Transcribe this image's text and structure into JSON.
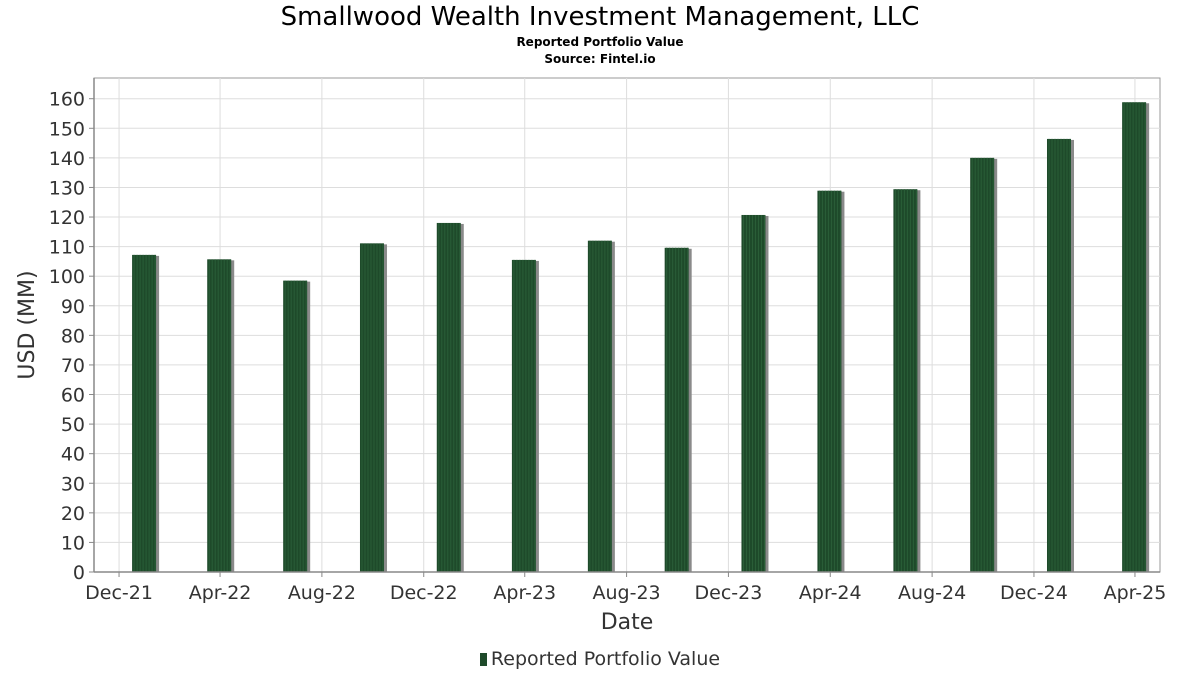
{
  "header": {
    "title": "Smallwood Wealth Investment Management, LLC",
    "subtitle": "Reported Portfolio Value",
    "source": "Source: Fintel.io"
  },
  "legend": {
    "label": "Reported Portfolio Value",
    "position": "bottom-center"
  },
  "colors": {
    "bar": "#1e4a2a",
    "bar_stripe": "#2a5e38",
    "bar_shadow": "#8a8a8a",
    "grid": "#dddddd",
    "axis": "#888888"
  },
  "chart_data": {
    "type": "bar",
    "title": "Smallwood Wealth Investment Management, LLC",
    "subtitle": "Reported Portfolio Value",
    "xlabel": "Date",
    "ylabel": "USD (MM)",
    "ylim": [
      0,
      167
    ],
    "yticks": [
      0,
      10,
      20,
      30,
      40,
      50,
      60,
      70,
      80,
      90,
      100,
      110,
      120,
      130,
      140,
      150,
      160
    ],
    "xticks": [
      "Dec-21",
      "Apr-22",
      "Aug-22",
      "Dec-22",
      "Apr-23",
      "Aug-23",
      "Dec-23",
      "Apr-24",
      "Aug-24",
      "Dec-24",
      "Apr-25"
    ],
    "categories": [
      "2021-12-31",
      "2022-03-31",
      "2022-06-30",
      "2022-09-30",
      "2022-12-31",
      "2023-03-31",
      "2023-06-30",
      "2023-09-30",
      "2023-12-31",
      "2024-03-31",
      "2024-06-30",
      "2024-09-30",
      "2024-12-31",
      "2025-03-31"
    ],
    "series": [
      {
        "name": "Reported Portfolio Value",
        "values": [
          107.2,
          105.7,
          98.5,
          111.1,
          118.0,
          105.5,
          112.0,
          109.6,
          120.7,
          128.9,
          129.4,
          140.0,
          146.4,
          158.8
        ]
      }
    ],
    "grid": true,
    "legend": "bottom-center"
  }
}
